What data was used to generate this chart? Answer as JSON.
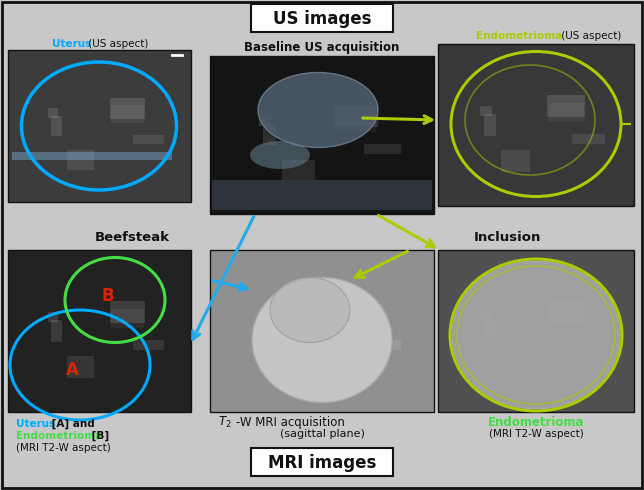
{
  "bg_color": "#c8c8c8",
  "border_color": "#111111",
  "title_us": "US images",
  "title_mri": "MRI images",
  "label_uterus_us": "Uterus",
  "label_us_aspect": " (US aspect)",
  "label_endo_us": "Endometrioma",
  "label_endo_us_aspect": " (US aspect)",
  "label_baseline": "Baseline US acquisition",
  "label_beefsteak": "Beefsteak",
  "label_inclusion": "Inclusion",
  "label_t2_sub": "(sagittal plane)",
  "label_uterus_A": "Uterus",
  "label_AB_and": " [A] and",
  "label_endo_B": "Endometrioma",
  "label_B_bracket": " [B]",
  "label_mri_t2w": "(MRI T2-W aspect)",
  "label_endo_mri": "Endometrioma",
  "label_endo_mri_t2": "(MRI T2-W aspect)",
  "color_uterus": "#00aaff",
  "color_endo": "#aacc00",
  "color_endo_bright": "#44dd44",
  "color_black": "#111111",
  "color_white": "#ffffff",
  "color_red_label": "#dd2200",
  "img_topleft_bg": "#3a3a3a",
  "img_topcenter_bg": "#1a1a1a",
  "img_topright_bg": "#404040",
  "img_botleft_bg": "#2a2a2a",
  "img_botcenter_bg": "#787878",
  "img_botright_bg": "#606060",
  "arrow_blue": "#22aaee",
  "arrow_green": "#aacc00"
}
